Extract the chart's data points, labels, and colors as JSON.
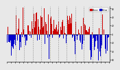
{
  "background_color": "#e8e8e8",
  "plot_bg_color": "#e8e8e8",
  "grid_color": "#888888",
  "bar_color_above": "#cc0000",
  "bar_color_below": "#0000cc",
  "legend_above_label": "Above",
  "legend_below_label": "Below",
  "ylim": [
    -65,
    65
  ],
  "ytick_vals": [
    60,
    40,
    20,
    0,
    -20,
    -40,
    -60
  ],
  "ytick_labels": [
    "60",
    "40",
    "20",
    "0",
    "20",
    "40",
    "60"
  ],
  "num_points": 365,
  "seed": 99,
  "seasonal_amplitude": 18,
  "seasonal_phase": 1.2,
  "noise_scale": 25,
  "num_gridlines": 13
}
